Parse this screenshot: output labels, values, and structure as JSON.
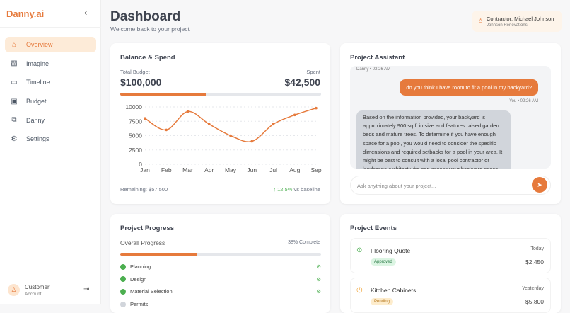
{
  "sidebar": {
    "brand": "Danny.ai",
    "items": [
      {
        "label": "Overview",
        "icon": "home-icon",
        "glyph": "⌂",
        "active": true
      },
      {
        "label": "Imagine",
        "icon": "image-icon",
        "glyph": "▨"
      },
      {
        "label": "Timeline",
        "icon": "calendar-icon",
        "glyph": "▭"
      },
      {
        "label": "Budget",
        "icon": "wallet-icon",
        "glyph": "▣"
      },
      {
        "label": "Danny",
        "icon": "chat-icon",
        "glyph": "⧉"
      },
      {
        "label": "Settings",
        "icon": "gear-icon",
        "glyph": "⚙"
      }
    ],
    "account": {
      "name": "Customer",
      "role": "Account"
    }
  },
  "header": {
    "title": "Dashboard",
    "subtitle": "Welcome back to your project",
    "contractor": "Contractor: Michael Johnson",
    "company": "Johnson Renovations"
  },
  "balance": {
    "title": "Balance & Spend",
    "budget_label": "Total Budget",
    "budget": "$100,000",
    "spent_label": "Spent",
    "spent": "$42,500",
    "spent_fraction": 0.425,
    "remaining": "Remaining: $57,500",
    "change": "12.5%",
    "change_suffix": "vs baseline"
  },
  "chart_data": {
    "type": "line",
    "categories": [
      "Jan",
      "Feb",
      "Mar",
      "Apr",
      "May",
      "Jun",
      "Jul",
      "Aug",
      "Sep"
    ],
    "values": [
      8000,
      6000,
      9200,
      7000,
      5000,
      4000,
      7000,
      8600,
      9800
    ],
    "yticks": [
      0,
      2500,
      5000,
      7500,
      10000
    ],
    "ylim": [
      0,
      10000
    ],
    "grid": true,
    "color": "#e67a3c"
  },
  "assistant": {
    "title": "Project Assistant",
    "first_ts": "Danny • 02:26 AM",
    "user_msg": "do you think I have room to fit a pool in my backyard?",
    "user_ts": "You • 02:26 AM",
    "reply": "Based on the information provided, your backyard is approximately 900 sq ft in size and features raised garden beds and mature trees. To determine if you have enough space for a pool, you would need to consider the specific dimensions and required setbacks for a pool in your area. It might be best to consult with a local pool contractor or landscape architect who can assess your backyard space",
    "placeholder": "Ask anything about your project..."
  },
  "progress": {
    "title": "Project Progress",
    "label": "Overall Progress",
    "percent_text": "38% Complete",
    "fraction": 0.38,
    "stages": [
      {
        "name": "Planning",
        "done": true
      },
      {
        "name": "Design",
        "done": true
      },
      {
        "name": "Material Selection",
        "done": true
      },
      {
        "name": "Permits",
        "done": false
      }
    ]
  },
  "events": {
    "title": "Project Events",
    "items": [
      {
        "name": "Flooring Quote",
        "date": "Today",
        "status": "Approved",
        "amount": "$2,450",
        "status_color": "#dcf5e3",
        "text_color": "#2e7d4a",
        "icon": "check-circle-icon",
        "icon_color": "#4caf50"
      },
      {
        "name": "Kitchen Cabinets",
        "date": "Yesterday",
        "status": "Pending",
        "amount": "$5,800",
        "status_color": "#fdeccc",
        "text_color": "#b7791f",
        "icon": "clock-icon",
        "icon_color": "#f0a030"
      }
    ]
  }
}
